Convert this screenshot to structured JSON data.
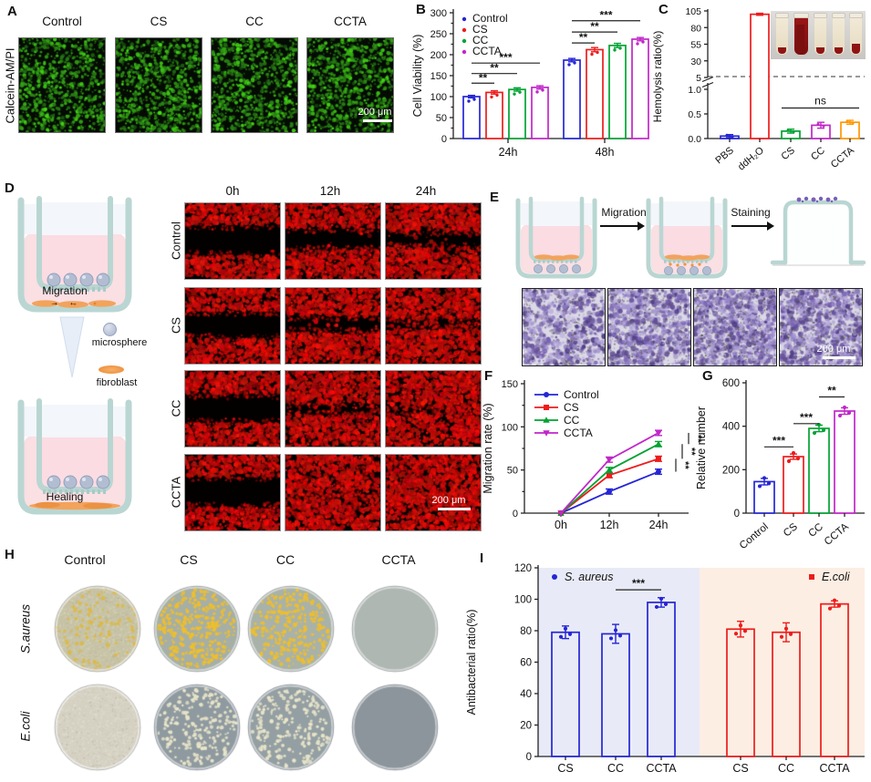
{
  "colors": {
    "blue": "#2525d5",
    "red": "#ee1c1c",
    "green": "#00a332",
    "magenta": "#c127c9",
    "orange": "#ff9800"
  },
  "panels": {
    "A": {
      "letter": "A",
      "ylabel": "Calcein-AM/PI",
      "columns": [
        "Control",
        "CS",
        "CC",
        "CCTA"
      ],
      "scalebar": "200 μm"
    },
    "B": {
      "letter": "B"
    },
    "C": {
      "letter": "C"
    },
    "D": {
      "letter": "D",
      "columns": [
        "0h",
        "12h",
        "24h"
      ],
      "rows": [
        "Control",
        "CS",
        "CC",
        "CCTA"
      ],
      "scalebar": "200 μm",
      "schematic": {
        "top_label": "Migration",
        "top_arrows": "→ ←",
        "bottom_label": "Healing",
        "legend_microsphere": "microsphere",
        "legend_fibroblast": "fibroblast"
      }
    },
    "E": {
      "letter": "E",
      "arrow1_label": "Migration",
      "arrow2_label": "Staining",
      "scalebar": "200 μm"
    },
    "F": {
      "letter": "F"
    },
    "G": {
      "letter": "G"
    },
    "H": {
      "letter": "H",
      "columns": [
        "Control",
        "CS",
        "CC",
        "CCTA"
      ],
      "rows": [
        "S.aureus",
        "E.coli"
      ]
    },
    "I": {
      "letter": "I"
    }
  },
  "chart_data": [
    {
      "id": "B",
      "type": "bar-grouped",
      "ylabel": "Cell Viability (%)",
      "ylim": [
        0,
        300
      ],
      "yticks": [
        0,
        50,
        100,
        150,
        200,
        250,
        300
      ],
      "categories": [
        "24h",
        "48h"
      ],
      "series": [
        {
          "name": "Control",
          "color": "#2525d5",
          "values": [
            100,
            187
          ],
          "err": [
            3,
            4
          ]
        },
        {
          "name": "CS",
          "color": "#ee1c1c",
          "values": [
            110,
            212
          ],
          "err": [
            4,
            5
          ]
        },
        {
          "name": "CC",
          "color": "#00a332",
          "values": [
            117,
            222
          ],
          "err": [
            4,
            5
          ]
        },
        {
          "name": "CCTA",
          "color": "#c127c9",
          "values": [
            122,
            237
          ],
          "err": [
            4,
            4
          ]
        }
      ],
      "sig": [
        {
          "group": 0,
          "from": 0,
          "to": 1,
          "y": 132,
          "label": "**"
        },
        {
          "group": 0,
          "from": 0,
          "to": 2,
          "y": 155,
          "label": "**"
        },
        {
          "group": 0,
          "from": 0,
          "to": 3,
          "y": 180,
          "label": "***"
        },
        {
          "group": 1,
          "from": 0,
          "to": 1,
          "y": 228,
          "label": "**"
        },
        {
          "group": 1,
          "from": 0,
          "to": 2,
          "y": 254,
          "label": "**"
        },
        {
          "group": 1,
          "from": 0,
          "to": 3,
          "y": 281,
          "label": "***"
        }
      ]
    },
    {
      "id": "C",
      "type": "bar-broken",
      "ylabel": "Hemolysis ratio(%)",
      "upper_ylim": [
        5,
        105
      ],
      "upper_yticks": [
        5,
        30,
        55,
        80,
        105
      ],
      "lower_ylim": [
        0,
        1.0
      ],
      "lower_yticks": [
        "0.0",
        "0.5",
        "1.0"
      ],
      "categories": [
        "PBS",
        "ddH₂O",
        "CS",
        "CC",
        "CCTA"
      ],
      "values": [
        0.05,
        100,
        0.15,
        0.27,
        0.33
      ],
      "errors": [
        0.03,
        1.5,
        0.04,
        0.06,
        0.04
      ],
      "colors": [
        "#2525d5",
        "#ee1c1c",
        "#00a332",
        "#c127c9",
        "#ff9800"
      ],
      "sig": [
        {
          "from": 2,
          "to": 4,
          "y": 0.62,
          "label": "ns"
        }
      ]
    },
    {
      "id": "F",
      "type": "line",
      "ylabel": "Migration rate (%)",
      "ylim": [
        0,
        150
      ],
      "yticks": [
        0,
        50,
        100,
        150
      ],
      "x": [
        "0h",
        "12h",
        "24h"
      ],
      "series": [
        {
          "name": "Control",
          "color": "#2525d5",
          "marker": "circle",
          "values": [
            0,
            25,
            48
          ],
          "err": 3
        },
        {
          "name": "CS",
          "color": "#ee1c1c",
          "marker": "square",
          "values": [
            0,
            44,
            63
          ],
          "err": 3
        },
        {
          "name": "CC",
          "color": "#00a332",
          "marker": "triangle-up",
          "values": [
            0,
            50,
            80
          ],
          "err": 3
        },
        {
          "name": "CCTA",
          "color": "#c127c9",
          "marker": "triangle-down",
          "values": [
            0,
            62,
            93
          ],
          "err": 3
        }
      ],
      "sig": [
        {
          "v1": 48,
          "v2": 63,
          "label": "**"
        },
        {
          "v1": 63,
          "v2": 80,
          "label": "**"
        },
        {
          "v1": 80,
          "v2": 93,
          "label": "**"
        }
      ]
    },
    {
      "id": "G",
      "type": "bar-simple",
      "ylabel": "Relative number",
      "ylim": [
        0,
        600
      ],
      "yticks": [
        0,
        200,
        400,
        600
      ],
      "categories": [
        "Control",
        "CS",
        "CC",
        "CCTA"
      ],
      "values": [
        145,
        260,
        390,
        470
      ],
      "errors": [
        15,
        12,
        15,
        15
      ],
      "colors": [
        "#2525d5",
        "#ee1c1c",
        "#00a332",
        "#c127c9"
      ],
      "rotate_xticks": true,
      "sig": [
        {
          "from": 0,
          "to": 1,
          "y": 305,
          "label": "***"
        },
        {
          "from": 1,
          "to": 2,
          "y": 412,
          "label": "***"
        },
        {
          "from": 2,
          "to": 3,
          "y": 535,
          "label": "**"
        }
      ]
    },
    {
      "id": "I",
      "type": "bar-simple",
      "ylabel": "Antibacterial ratio(%)",
      "ylim": [
        0,
        120
      ],
      "yticks": [
        0,
        20,
        40,
        60,
        80,
        100,
        120
      ],
      "categories": [
        "CS",
        "CC",
        "CCTA",
        "CS",
        "CC",
        "CCTA"
      ],
      "values": [
        79,
        78,
        98,
        81,
        79,
        97
      ],
      "errors": [
        4,
        6,
        3,
        5,
        6,
        2
      ],
      "colors": [
        "#2525d5",
        "#2525d5",
        "#2525d5",
        "#ee1c1c",
        "#ee1c1c",
        "#ee1c1c"
      ],
      "legend": [
        {
          "label": "S. aureus",
          "color": "#2525d5",
          "marker": "circle"
        },
        {
          "label": "E.coli",
          "color": "#ee1c1c",
          "marker": "square"
        }
      ],
      "zones": [
        {
          "color": "#e8ebf7"
        },
        {
          "color": "#fdeee3"
        }
      ],
      "sig": [
        {
          "from": 1,
          "to": 2,
          "y": 106,
          "label": "***"
        }
      ]
    }
  ]
}
